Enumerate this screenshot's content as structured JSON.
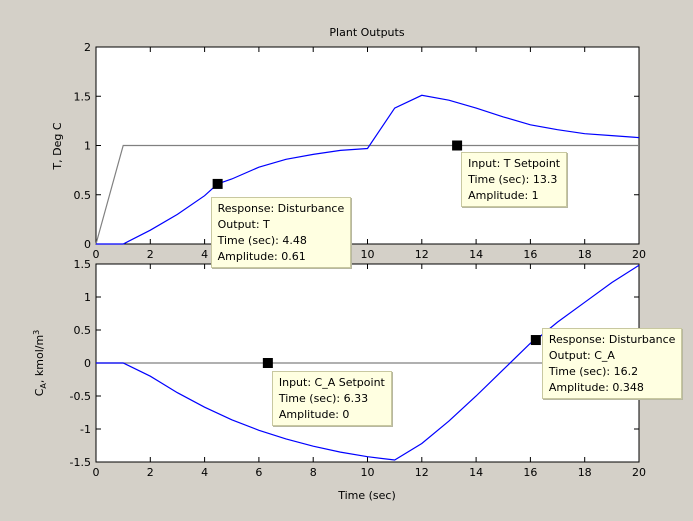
{
  "figure": {
    "title": "Plant Outputs",
    "background": "#d4d0c8"
  },
  "chart_data": [
    {
      "type": "line",
      "title": "Plant Outputs",
      "ylabel": "T, Deg C",
      "xlabel": "",
      "xlim": [
        0,
        20
      ],
      "ylim": [
        0,
        2
      ],
      "xticks": [
        "0",
        "2",
        "4",
        "6",
        "8",
        "10",
        "12",
        "14",
        "16",
        "18",
        "20"
      ],
      "yticks": [
        "0",
        "0.5",
        "1",
        "1.5",
        "2"
      ],
      "grid": false,
      "series": [
        {
          "name": "T Setpoint",
          "color": "#808080",
          "points": [
            [
              0,
              0
            ],
            [
              1,
              1
            ],
            [
              20,
              1
            ]
          ]
        },
        {
          "name": "Disturbance",
          "color": "#0000ff",
          "points": [
            [
              0,
              0
            ],
            [
              1,
              0
            ],
            [
              2,
              0.14
            ],
            [
              3,
              0.3
            ],
            [
              4,
              0.49
            ],
            [
              4.48,
              0.61
            ],
            [
              5,
              0.66
            ],
            [
              6,
              0.78
            ],
            [
              7,
              0.86
            ],
            [
              8,
              0.91
            ],
            [
              9,
              0.95
            ],
            [
              10,
              0.97
            ],
            [
              11,
              1.38
            ],
            [
              12,
              1.51
            ],
            [
              13,
              1.46
            ],
            [
              14,
              1.38
            ],
            [
              15,
              1.29
            ],
            [
              16,
              1.21
            ],
            [
              17,
              1.16
            ],
            [
              18,
              1.12
            ],
            [
              19,
              1.1
            ],
            [
              20,
              1.08
            ]
          ]
        }
      ],
      "datatips": [
        {
          "x": 4.48,
          "y": 0.61,
          "lines": [
            "Response: Disturbance",
            "Output: T",
            "Time (sec): 4.48",
            "Amplitude: 0.61"
          ]
        },
        {
          "x": 13.3,
          "y": 1,
          "lines": [
            "Input: T Setpoint",
            "Time (sec): 13.3",
            "Amplitude: 1"
          ]
        }
      ]
    },
    {
      "type": "line",
      "ylabel": "C_A, kmol/m^3",
      "xlabel": "Time (sec)",
      "xlim": [
        0,
        20
      ],
      "ylim": [
        -1.5,
        1.5
      ],
      "xticks": [
        "0",
        "2",
        "4",
        "6",
        "8",
        "10",
        "12",
        "14",
        "16",
        "18",
        "20"
      ],
      "yticks": [
        "-1.5",
        "-1",
        "-0.5",
        "0",
        "0.5",
        "1",
        "1.5"
      ],
      "grid": false,
      "series": [
        {
          "name": "C_A Setpoint",
          "color": "#808080",
          "points": [
            [
              0,
              0
            ],
            [
              20,
              0
            ]
          ]
        },
        {
          "name": "Disturbance",
          "color": "#0000ff",
          "points": [
            [
              0,
              0
            ],
            [
              1,
              0
            ],
            [
              2,
              -0.2
            ],
            [
              3,
              -0.45
            ],
            [
              4,
              -0.67
            ],
            [
              5,
              -0.86
            ],
            [
              6,
              -1.02
            ],
            [
              7,
              -1.15
            ],
            [
              8,
              -1.26
            ],
            [
              9,
              -1.35
            ],
            [
              10,
              -1.42
            ],
            [
              11,
              -1.47
            ],
            [
              12,
              -1.22
            ],
            [
              13,
              -0.88
            ],
            [
              14,
              -0.5
            ],
            [
              15,
              -0.1
            ],
            [
              16,
              0.3
            ],
            [
              16.2,
              0.348
            ],
            [
              17,
              0.62
            ],
            [
              18,
              0.92
            ],
            [
              19,
              1.22
            ],
            [
              20,
              1.48
            ]
          ]
        }
      ],
      "datatips": [
        {
          "x": 6.33,
          "y": 0,
          "lines": [
            "Input: C_A Setpoint",
            "Time (sec): 6.33",
            "Amplitude: 0"
          ]
        },
        {
          "x": 16.2,
          "y": 0.348,
          "lines": [
            "Response: Disturbance",
            "Output: C_A",
            "Time (sec): 16.2",
            "Amplitude: 0.348"
          ]
        }
      ]
    }
  ]
}
